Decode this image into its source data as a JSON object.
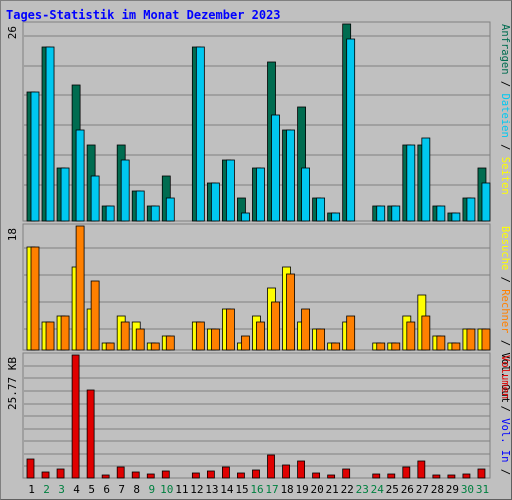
{
  "title": "Tages-Statistik im Monat Dezember 2023",
  "colors": {
    "anfragen": "#006c50",
    "dateien": "#00c8f0",
    "seiten": "#00e0ff",
    "besuche": "#ffff00",
    "rechner": "#ff8000",
    "volumen": "#e00000",
    "weekend_label": "#008040",
    "weekday_label": "#000000",
    "grid": "#808080",
    "plot_bg": "#c0c0c0"
  },
  "chart_data": [
    {
      "type": "bar",
      "title": "",
      "ymax_label": "26",
      "ylim": [
        0,
        26
      ],
      "categories": [
        "1",
        "2",
        "3",
        "4",
        "5",
        "6",
        "7",
        "8",
        "9",
        "10",
        "11",
        "12",
        "13",
        "14",
        "15",
        "16",
        "17",
        "18",
        "19",
        "20",
        "21",
        "22",
        "23",
        "24",
        "25",
        "26",
        "27",
        "28",
        "29",
        "30",
        "31"
      ],
      "series": [
        {
          "name": "Anfragen",
          "key": "anfragen",
          "values": [
            17,
            23,
            7,
            18,
            10,
            2,
            10,
            4,
            2,
            6,
            0,
            23,
            5,
            8,
            3,
            7,
            21,
            12,
            15,
            3,
            1,
            26,
            0,
            2,
            2,
            10,
            10,
            2,
            1,
            3,
            7
          ]
        },
        {
          "name": "Dateien",
          "key": "dateien",
          "values": [
            17,
            23,
            7,
            12,
            6,
            2,
            8,
            4,
            2,
            3,
            0,
            23,
            5,
            8,
            1,
            7,
            14,
            12,
            7,
            3,
            1,
            24,
            0,
            2,
            2,
            10,
            11,
            2,
            1,
            3,
            5
          ]
        }
      ],
      "right_legend": [
        {
          "text": "Anfragen",
          "key": "anfragen"
        },
        {
          "text": " / ",
          "key": "sep"
        },
        {
          "text": "Dateien",
          "key": "dateien"
        },
        {
          "text": " / ",
          "key": "sep"
        },
        {
          "text": "Seiten",
          "key": "seiten"
        }
      ]
    },
    {
      "type": "bar",
      "title": "",
      "ymax_label": "18",
      "ylim": [
        0,
        18
      ],
      "categories": [
        "1",
        "2",
        "3",
        "4",
        "5",
        "6",
        "7",
        "8",
        "9",
        "10",
        "11",
        "12",
        "13",
        "14",
        "15",
        "16",
        "17",
        "18",
        "19",
        "20",
        "21",
        "22",
        "23",
        "24",
        "25",
        "26",
        "27",
        "28",
        "29",
        "30",
        "31"
      ],
      "series": [
        {
          "name": "Besuche",
          "key": "besuche",
          "values": [
            15,
            4,
            5,
            12,
            6,
            1,
            5,
            4,
            1,
            2,
            0,
            4,
            3,
            6,
            1,
            5,
            9,
            12,
            4,
            3,
            1,
            4,
            0,
            1,
            1,
            5,
            8,
            2,
            1,
            3,
            3
          ]
        },
        {
          "name": "Rechner",
          "key": "rechner",
          "values": [
            15,
            4,
            5,
            18,
            10,
            1,
            4,
            3,
            1,
            2,
            0,
            4,
            3,
            6,
            2,
            4,
            7,
            11,
            6,
            3,
            1,
            5,
            0,
            1,
            1,
            4,
            5,
            2,
            1,
            3,
            3
          ]
        }
      ],
      "right_legend": [
        {
          "text": "Besuche",
          "key": "besuche"
        },
        {
          "text": " / ",
          "key": "sep"
        },
        {
          "text": "Rechner",
          "key": "rechner"
        },
        {
          "text": " / ",
          "key": "sep"
        },
        {
          "text": "Vol. Out",
          "key": "volout"
        }
      ]
    },
    {
      "type": "bar",
      "title": "",
      "ymax_label": "25.77 KB",
      "ylim": [
        0,
        25.77
      ],
      "categories": [
        "1",
        "2",
        "3",
        "4",
        "5",
        "6",
        "7",
        "8",
        "9",
        "10",
        "11",
        "12",
        "13",
        "14",
        "15",
        "16",
        "17",
        "18",
        "19",
        "20",
        "21",
        "22",
        "23",
        "24",
        "25",
        "26",
        "27",
        "28",
        "29",
        "30",
        "31"
      ],
      "series": [
        {
          "name": "Volumen",
          "key": "volumen",
          "values": [
            4.0,
            1.2,
            1.8,
            25.77,
            18.5,
            0.7,
            2.3,
            1.2,
            0.9,
            1.4,
            0,
            1.1,
            1.5,
            2.2,
            1.0,
            1.7,
            4.8,
            2.8,
            3.6,
            1.0,
            0.6,
            1.8,
            0,
            0.8,
            0.8,
            2.4,
            3.5,
            0.7,
            0.7,
            0.9,
            1.8
          ]
        }
      ],
      "right_legend": [
        {
          "text": "Volumen",
          "key": "volumen"
        },
        {
          "text": " / ",
          "key": "sep"
        },
        {
          "text": "Vol. In",
          "key": "volin"
        },
        {
          "text": " / ",
          "key": "sep"
        }
      ]
    }
  ],
  "weekend_days": [
    2,
    3,
    9,
    10,
    16,
    17,
    23,
    24,
    30,
    31
  ]
}
